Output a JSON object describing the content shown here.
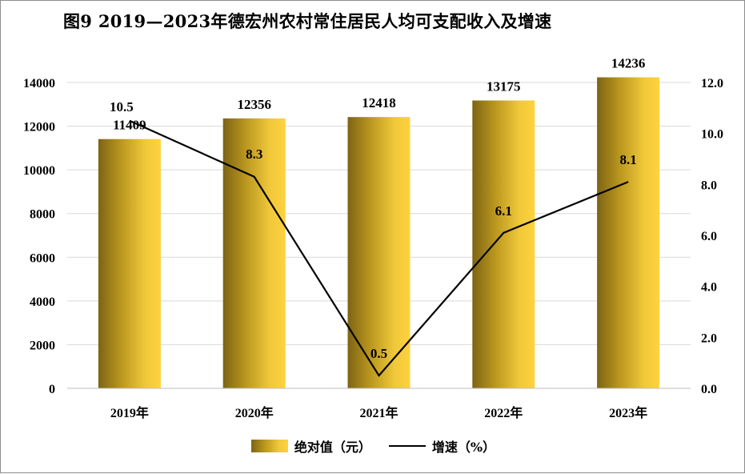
{
  "title": "图9  2019—2023年德宏州农村常住居民人均可支配收入及增速",
  "legend": {
    "bar_label": "绝对值（元）",
    "line_label": "增速（%）"
  },
  "colors": {
    "bar_dark": "#7d6414",
    "bar_light": "#ffd23f",
    "line": "#000000",
    "grid": "#d9d9d9"
  },
  "chart_data": {
    "type": "bar",
    "categories": [
      "2019年",
      "2020年",
      "2021年",
      "2022年",
      "2023年"
    ],
    "series": [
      {
        "name": "绝对值（元）",
        "type": "bar",
        "axis": "left",
        "values": [
          11409,
          12356,
          12418,
          13175,
          14236
        ]
      },
      {
        "name": "增速（%）",
        "type": "line",
        "axis": "right",
        "values": [
          10.5,
          8.3,
          0.5,
          6.1,
          8.1
        ]
      }
    ],
    "y_left": {
      "min": 0,
      "max": 14000,
      "step": 2000,
      "ticks": [
        "0",
        "2000",
        "4000",
        "6000",
        "8000",
        "10000",
        "12000",
        "14000"
      ]
    },
    "y_right": {
      "min": 0,
      "max": 12,
      "step": 2,
      "ticks": [
        "0.0",
        "2.0",
        "4.0",
        "6.0",
        "8.0",
        "10.0",
        "12.0"
      ]
    },
    "grid": true,
    "legend_position": "bottom"
  }
}
